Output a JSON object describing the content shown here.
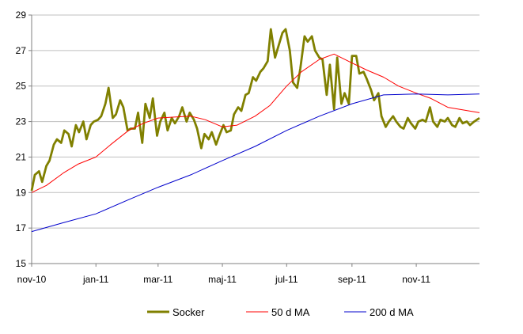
{
  "chart_data": {
    "type": "line",
    "title": "",
    "xlabel": "",
    "ylabel": "",
    "x_tick_labels": [
      "nov-10",
      "jan-11",
      "mar-11",
      "maj-11",
      "jul-11",
      "sep-11",
      "nov-11"
    ],
    "y_ticks": [
      15,
      17,
      19,
      21,
      23,
      25,
      27,
      29
    ],
    "ylim": [
      15,
      29
    ],
    "xlim": [
      "2010-11-01",
      "2011-12-31"
    ],
    "grid": "horizontal",
    "legend_position": "bottom",
    "series": [
      {
        "name": "Socker",
        "color": "#808000",
        "points": [
          [
            "2010-11-01",
            19.1
          ],
          [
            "2010-11-04",
            20.0
          ],
          [
            "2010-11-08",
            20.2
          ],
          [
            "2010-11-11",
            19.6
          ],
          [
            "2010-11-15",
            20.5
          ],
          [
            "2010-11-18",
            20.8
          ],
          [
            "2010-11-22",
            21.7
          ],
          [
            "2010-11-25",
            22.0
          ],
          [
            "2010-11-29",
            21.8
          ],
          [
            "2010-12-02",
            22.5
          ],
          [
            "2010-12-06",
            22.3
          ],
          [
            "2010-12-09",
            21.6
          ],
          [
            "2010-12-13",
            22.8
          ],
          [
            "2010-12-16",
            22.4
          ],
          [
            "2010-12-20",
            23.0
          ],
          [
            "2010-12-23",
            22.0
          ],
          [
            "2010-12-27",
            22.8
          ],
          [
            "2010-12-30",
            23.0
          ],
          [
            "2011-01-03",
            23.1
          ],
          [
            "2011-01-06",
            23.3
          ],
          [
            "2011-01-10",
            24.0
          ],
          [
            "2011-01-13",
            24.9
          ],
          [
            "2011-01-17",
            23.2
          ],
          [
            "2011-01-20",
            23.4
          ],
          [
            "2011-01-24",
            24.2
          ],
          [
            "2011-01-27",
            23.8
          ],
          [
            "2011-01-31",
            22.5
          ],
          [
            "2011-02-03",
            22.6
          ],
          [
            "2011-02-07",
            22.6
          ],
          [
            "2011-02-10",
            23.5
          ],
          [
            "2011-02-14",
            21.8
          ],
          [
            "2011-02-17",
            24.0
          ],
          [
            "2011-02-21",
            23.2
          ],
          [
            "2011-02-24",
            24.3
          ],
          [
            "2011-02-28",
            22.2
          ],
          [
            "2011-03-03",
            23.0
          ],
          [
            "2011-03-07",
            23.5
          ],
          [
            "2011-03-10",
            22.5
          ],
          [
            "2011-03-14",
            23.2
          ],
          [
            "2011-03-17",
            22.9
          ],
          [
            "2011-03-21",
            23.3
          ],
          [
            "2011-03-24",
            23.8
          ],
          [
            "2011-03-28",
            23.0
          ],
          [
            "2011-03-31",
            23.5
          ],
          [
            "2011-04-04",
            23.1
          ],
          [
            "2011-04-07",
            22.6
          ],
          [
            "2011-04-11",
            21.5
          ],
          [
            "2011-04-14",
            22.3
          ],
          [
            "2011-04-18",
            22.0
          ],
          [
            "2011-04-21",
            22.4
          ],
          [
            "2011-04-25",
            21.7
          ],
          [
            "2011-04-28",
            22.2
          ],
          [
            "2011-05-02",
            22.8
          ],
          [
            "2011-05-05",
            22.4
          ],
          [
            "2011-05-09",
            22.5
          ],
          [
            "2011-05-12",
            23.4
          ],
          [
            "2011-05-16",
            23.8
          ],
          [
            "2011-05-19",
            23.6
          ],
          [
            "2011-05-23",
            24.5
          ],
          [
            "2011-05-26",
            24.6
          ],
          [
            "2011-05-30",
            25.5
          ],
          [
            "2011-06-02",
            25.3
          ],
          [
            "2011-06-06",
            25.8
          ],
          [
            "2011-06-09",
            26.0
          ],
          [
            "2011-06-13",
            26.4
          ],
          [
            "2011-06-16",
            28.2
          ],
          [
            "2011-06-20",
            26.6
          ],
          [
            "2011-06-23",
            27.2
          ],
          [
            "2011-06-27",
            28.0
          ],
          [
            "2011-06-30",
            28.2
          ],
          [
            "2011-07-04",
            27.0
          ],
          [
            "2011-07-07",
            25.2
          ],
          [
            "2011-07-11",
            24.9
          ],
          [
            "2011-07-14",
            26.0
          ],
          [
            "2011-07-18",
            27.8
          ],
          [
            "2011-07-21",
            27.5
          ],
          [
            "2011-07-25",
            27.8
          ],
          [
            "2011-07-28",
            27.0
          ],
          [
            "2011-08-01",
            26.6
          ],
          [
            "2011-08-04",
            26.5
          ],
          [
            "2011-08-08",
            24.5
          ],
          [
            "2011-08-11",
            26.2
          ],
          [
            "2011-08-15",
            23.7
          ],
          [
            "2011-08-18",
            26.6
          ],
          [
            "2011-08-22",
            24.0
          ],
          [
            "2011-08-25",
            24.6
          ],
          [
            "2011-08-29",
            24.0
          ],
          [
            "2011-09-01",
            26.7
          ],
          [
            "2011-09-05",
            26.7
          ],
          [
            "2011-09-08",
            25.7
          ],
          [
            "2011-09-12",
            25.8
          ],
          [
            "2011-09-15",
            25.4
          ],
          [
            "2011-09-19",
            24.8
          ],
          [
            "2011-09-22",
            24.2
          ],
          [
            "2011-09-26",
            24.6
          ],
          [
            "2011-09-29",
            23.3
          ],
          [
            "2011-10-03",
            22.7
          ],
          [
            "2011-10-06",
            23.0
          ],
          [
            "2011-10-10",
            23.3
          ],
          [
            "2011-10-13",
            23.0
          ],
          [
            "2011-10-17",
            22.7
          ],
          [
            "2011-10-20",
            22.6
          ],
          [
            "2011-10-24",
            23.2
          ],
          [
            "2011-10-27",
            22.9
          ],
          [
            "2011-10-31",
            22.6
          ],
          [
            "2011-11-03",
            23.0
          ],
          [
            "2011-11-07",
            23.1
          ],
          [
            "2011-11-10",
            23.0
          ],
          [
            "2011-11-14",
            23.8
          ],
          [
            "2011-11-17",
            23.0
          ],
          [
            "2011-11-21",
            22.7
          ],
          [
            "2011-11-24",
            23.1
          ],
          [
            "2011-11-28",
            23.0
          ],
          [
            "2011-12-01",
            23.2
          ],
          [
            "2011-12-05",
            22.8
          ],
          [
            "2011-12-08",
            22.7
          ],
          [
            "2011-12-12",
            23.2
          ],
          [
            "2011-12-15",
            22.9
          ],
          [
            "2011-12-19",
            23.0
          ],
          [
            "2011-12-22",
            22.8
          ],
          [
            "2011-12-26",
            23.0
          ],
          [
            "2011-12-31",
            23.2
          ]
        ]
      },
      {
        "name": "50 d MA",
        "color": "#ff0000",
        "points": [
          [
            "2010-11-01",
            19.0
          ],
          [
            "2010-11-15",
            19.4
          ],
          [
            "2010-12-01",
            20.1
          ],
          [
            "2010-12-15",
            20.6
          ],
          [
            "2011-01-01",
            21.0
          ],
          [
            "2011-01-15",
            21.7
          ],
          [
            "2011-02-01",
            22.5
          ],
          [
            "2011-02-15",
            22.9
          ],
          [
            "2011-03-01",
            23.2
          ],
          [
            "2011-03-15",
            23.25
          ],
          [
            "2011-04-01",
            23.3
          ],
          [
            "2011-04-15",
            23.1
          ],
          [
            "2011-05-01",
            22.7
          ],
          [
            "2011-05-15",
            22.8
          ],
          [
            "2011-06-01",
            23.3
          ],
          [
            "2011-06-15",
            23.9
          ],
          [
            "2011-07-01",
            25.0
          ],
          [
            "2011-07-15",
            25.8
          ],
          [
            "2011-08-01",
            26.5
          ],
          [
            "2011-08-15",
            26.8
          ],
          [
            "2011-09-01",
            26.3
          ],
          [
            "2011-09-15",
            25.9
          ],
          [
            "2011-10-01",
            25.5
          ],
          [
            "2011-10-15",
            25.0
          ],
          [
            "2011-11-01",
            24.6
          ],
          [
            "2011-11-15",
            24.3
          ],
          [
            "2011-12-01",
            23.8
          ],
          [
            "2011-12-31",
            23.5
          ]
        ]
      },
      {
        "name": "200 d MA",
        "color": "#0000cc",
        "points": [
          [
            "2010-11-01",
            16.8
          ],
          [
            "2010-12-01",
            17.3
          ],
          [
            "2011-01-01",
            17.8
          ],
          [
            "2011-02-01",
            18.6
          ],
          [
            "2011-03-01",
            19.3
          ],
          [
            "2011-04-01",
            20.0
          ],
          [
            "2011-05-01",
            20.8
          ],
          [
            "2011-06-01",
            21.6
          ],
          [
            "2011-07-01",
            22.5
          ],
          [
            "2011-08-01",
            23.3
          ],
          [
            "2011-09-01",
            24.0
          ],
          [
            "2011-10-01",
            24.5
          ],
          [
            "2011-11-01",
            24.55
          ],
          [
            "2011-12-01",
            24.5
          ],
          [
            "2011-12-31",
            24.55
          ]
        ]
      }
    ]
  }
}
